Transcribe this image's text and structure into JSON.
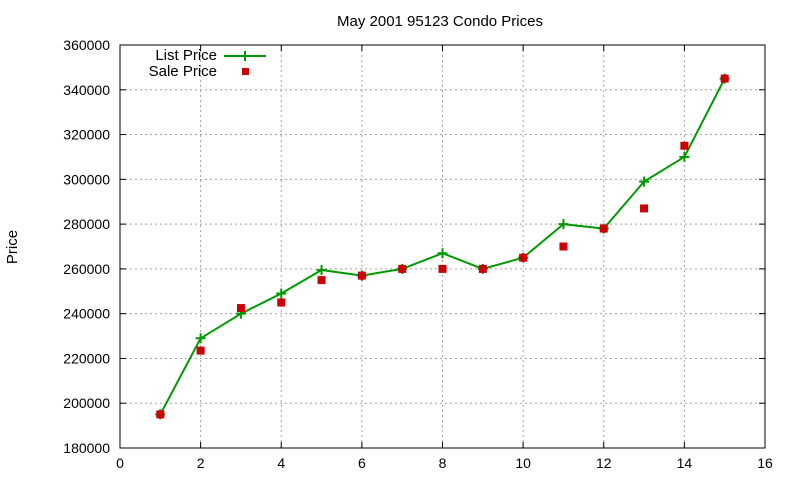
{
  "chart_data": {
    "type": "line",
    "title": "May 2001 95123 Condo Prices",
    "xlabel": "",
    "ylabel": "Price",
    "xlim": [
      0,
      16
    ],
    "ylim": [
      180000,
      360000
    ],
    "xticks": [
      0,
      2,
      4,
      6,
      8,
      10,
      12,
      14,
      16
    ],
    "yticks": [
      180000,
      200000,
      220000,
      240000,
      260000,
      280000,
      300000,
      320000,
      340000,
      360000
    ],
    "grid": true,
    "legend": {
      "placement": "top-left"
    },
    "series": [
      {
        "name": "List Price",
        "style": "line+cross",
        "color": "#009900",
        "points": [
          [
            1,
            195000
          ],
          [
            2,
            229000
          ],
          [
            3,
            240000
          ],
          [
            4,
            249000
          ],
          [
            5,
            259500
          ],
          [
            6,
            257000
          ],
          [
            7,
            260000
          ],
          [
            8,
            267000
          ],
          [
            9,
            260000
          ],
          [
            10,
            265000
          ],
          [
            11,
            280000
          ],
          [
            12,
            278000
          ],
          [
            13,
            299000
          ],
          [
            14,
            310000
          ],
          [
            15,
            345000
          ]
        ]
      },
      {
        "name": "Sale Price",
        "style": "square",
        "color": "#cc0000",
        "points": [
          [
            1,
            195000
          ],
          [
            2,
            223500
          ],
          [
            3,
            242500
          ],
          [
            4,
            245000
          ],
          [
            5,
            255000
          ],
          [
            6,
            257000
          ],
          [
            7,
            260000
          ],
          [
            8,
            260000
          ],
          [
            9,
            260000
          ],
          [
            10,
            265000
          ],
          [
            11,
            270000
          ],
          [
            12,
            278000
          ],
          [
            13,
            287000
          ],
          [
            14,
            315000
          ],
          [
            15,
            345000
          ]
        ]
      }
    ]
  }
}
